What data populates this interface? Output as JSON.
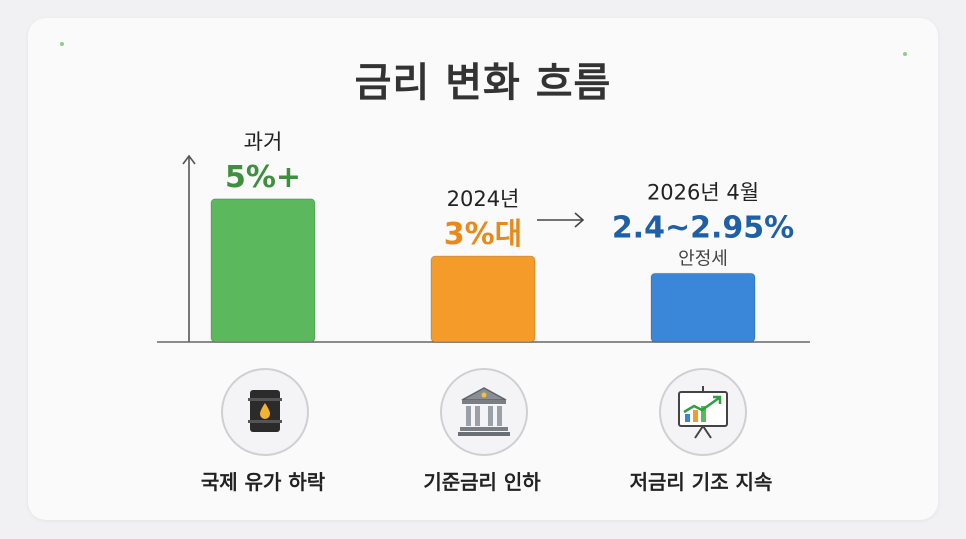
{
  "title": "금리 변화 흐름",
  "colors": {
    "past": "#5cb85c",
    "y2024": "#f59b2a",
    "y2026": "#3a86d8",
    "past_text": "#3f8f3f",
    "y2024_text": "#e8891a",
    "y2026_text": "#1f5fa8",
    "axis": "#555555"
  },
  "chart_data": {
    "type": "bar",
    "categories": [
      "과거",
      "2024년",
      "2026년 4월"
    ],
    "values": [
      5,
      3,
      2.4
    ],
    "ylim": [
      0,
      6.5
    ],
    "grid": false,
    "value_labels": [
      "5%+",
      "3%대",
      "2.4~2.95%"
    ],
    "annotations": [
      "안정세"
    ]
  },
  "icons": [
    {
      "name": "oil-barrel-icon",
      "caption": "국제 유가 하락"
    },
    {
      "name": "bank-building-icon",
      "caption": "기준금리 인하"
    },
    {
      "name": "rising-chart-board-icon",
      "caption": "저금리 기조 지속"
    }
  ]
}
